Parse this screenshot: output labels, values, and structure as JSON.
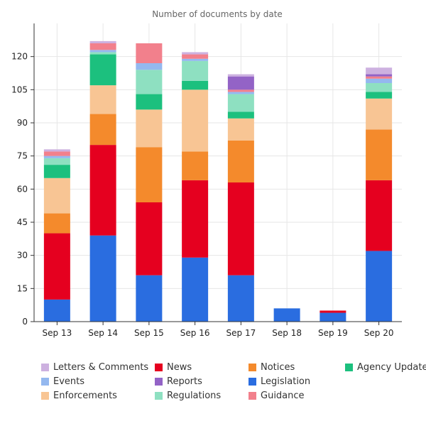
{
  "chart_data": {
    "type": "bar",
    "stacked": true,
    "title": "Number of documents by date",
    "xlabel": "",
    "ylabel": "",
    "ylim": [
      0,
      135
    ],
    "yticks": [
      0,
      15,
      30,
      45,
      60,
      75,
      90,
      105,
      120
    ],
    "grid": true,
    "legend_position": "bottom",
    "categories": [
      "Sep 13",
      "Sep 14",
      "Sep 15",
      "Sep 16",
      "Sep 17",
      "Sep 18",
      "Sep 19",
      "Sep 20"
    ],
    "series": [
      {
        "name": "Legislation",
        "color": "#2a6de0",
        "values": [
          10,
          39,
          21,
          29,
          21,
          6,
          4,
          32
        ]
      },
      {
        "name": "News",
        "color": "#e5001f",
        "values": [
          30,
          41,
          33,
          35,
          42,
          0,
          1,
          32
        ]
      },
      {
        "name": "Notices",
        "color": "#f48a2c",
        "values": [
          9,
          14,
          25,
          13,
          19,
          0,
          0,
          23
        ]
      },
      {
        "name": "Enforcements",
        "color": "#f8c594",
        "values": [
          16,
          13,
          17,
          28,
          10,
          0,
          0,
          14
        ]
      },
      {
        "name": "Agency Updates",
        "color": "#1cc07e",
        "values": [
          6,
          14,
          7,
          4,
          3,
          0,
          0,
          3
        ]
      },
      {
        "name": "Regulations",
        "color": "#8ee0c1",
        "values": [
          3,
          1,
          11,
          9,
          8,
          0,
          0,
          4
        ]
      },
      {
        "name": "Events",
        "color": "#94b8ef",
        "values": [
          1,
          1,
          3,
          1,
          1,
          0,
          0,
          2
        ]
      },
      {
        "name": "Guidance",
        "color": "#f2808c",
        "values": [
          2,
          3,
          9,
          2,
          1,
          0,
          0,
          1
        ]
      },
      {
        "name": "Reports",
        "color": "#9363c6",
        "values": [
          0,
          0,
          0,
          0,
          6,
          0,
          0,
          1
        ]
      },
      {
        "name": "Letters & Comments",
        "color": "#cdb1e0",
        "values": [
          1,
          1,
          0,
          1,
          1,
          0,
          0,
          3
        ]
      }
    ],
    "legend_order": [
      "Letters & Comments",
      "Events",
      "Enforcements",
      "News",
      "Reports",
      "Regulations",
      "Notices",
      "Legislation",
      "Guidance",
      "Agency Updates"
    ]
  }
}
